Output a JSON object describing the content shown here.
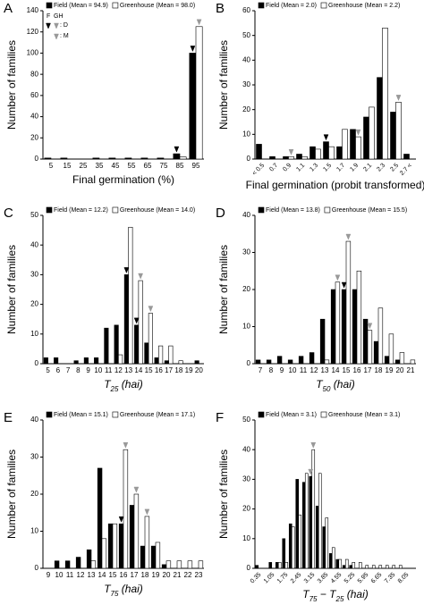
{
  "chart_data": [
    {
      "type": "bar",
      "panel": "A",
      "ylabel": "Number of families",
      "xlabel": [
        "Final germination (%)"
      ],
      "categories": [
        "5",
        "15",
        "25",
        "35",
        "45",
        "55",
        "65",
        "75",
        "85",
        "95"
      ],
      "series": [
        {
          "name": "Field (Mean = 94.9)",
          "color": "#000000",
          "values": [
            1,
            1,
            0,
            1,
            1,
            1,
            1,
            1,
            5,
            100
          ]
        },
        {
          "name": "Greenhouse (Mean = 98.0)",
          "color": "#ffffff",
          "values": [
            0,
            0,
            0,
            0,
            0,
            0,
            0,
            0,
            2,
            125
          ]
        }
      ],
      "ylim": [
        0,
        140
      ],
      "yticks": [
        0,
        20,
        40,
        60,
        80,
        100,
        120,
        140
      ],
      "arrow_legend": [
        "F",
        "GH",
        ": D",
        ": M"
      ],
      "arrows": [
        {
          "category": 8,
          "series": 0,
          "color": "#000000"
        },
        {
          "category": 9,
          "series": 0,
          "color": "#000000"
        },
        {
          "category": 9,
          "series": 1,
          "color": "#999999"
        }
      ]
    },
    {
      "type": "bar",
      "panel": "B",
      "ylabel": "Number of families",
      "xlabel": [
        "Final germination (probit transformed)"
      ],
      "rotate": true,
      "categories": [
        "< 0.5",
        "0.7",
        "0.9",
        "1.1",
        "1.3",
        "1.5",
        "1.7",
        "1.9",
        "2.1",
        "2.3",
        "2.5",
        "2.7 <"
      ],
      "series": [
        {
          "name": "Field (Mean = 2.0)",
          "color": "#000000",
          "values": [
            6,
            1,
            1,
            2,
            5,
            7,
            5,
            12,
            17,
            33,
            19,
            2
          ]
        },
        {
          "name": "Greenhouse (Mean = 2.2)",
          "color": "#ffffff",
          "values": [
            0,
            0,
            1,
            1,
            4,
            5,
            12,
            9,
            21,
            53,
            23,
            0
          ]
        }
      ],
      "ylim": [
        0,
        60
      ],
      "yticks": [
        0,
        10,
        20,
        30,
        40,
        50,
        60
      ],
      "arrows": [
        {
          "category": 2,
          "series": 1,
          "color": "#999999"
        },
        {
          "category": 5,
          "series": 0,
          "color": "#000000"
        },
        {
          "category": 7,
          "series": 1,
          "color": "#999999"
        },
        {
          "category": 10,
          "series": 1,
          "color": "#999999"
        }
      ]
    },
    {
      "type": "bar",
      "panel": "C",
      "ylabel": "Number of families",
      "xlabel": [
        "T",
        "25",
        " (hai)"
      ],
      "categories": [
        "5",
        "6",
        "7",
        "8",
        "9",
        "10",
        "11",
        "12",
        "13",
        "14",
        "15",
        "16",
        "17",
        "18",
        "19",
        "20"
      ],
      "series": [
        {
          "name": "Field (Mean = 12.2)",
          "color": "#000000",
          "values": [
            2,
            2,
            0,
            1,
            2,
            2,
            12,
            13,
            30,
            13,
            7,
            2,
            1,
            0,
            0,
            1
          ]
        },
        {
          "name": "Greenhouse (Mean = 14.0)",
          "color": "#ffffff",
          "values": [
            0,
            0,
            0,
            0,
            0,
            0,
            0,
            3,
            46,
            28,
            17,
            6,
            6,
            1,
            0,
            0
          ]
        }
      ],
      "ylim": [
        0,
        50
      ],
      "yticks": [
        0,
        10,
        20,
        30,
        40,
        50
      ],
      "arrows": [
        {
          "category": 8,
          "series": 0,
          "color": "#000000"
        },
        {
          "category": 9,
          "series": 1,
          "color": "#999999"
        },
        {
          "category": 9,
          "series": 0,
          "color": "#000000"
        },
        {
          "category": 10,
          "series": 1,
          "color": "#999999"
        }
      ]
    },
    {
      "type": "bar",
      "panel": "D",
      "ylabel": "Number of families",
      "xlabel": [
        "T",
        "50",
        " (hai)"
      ],
      "categories": [
        "7",
        "8",
        "9",
        "10",
        "11",
        "12",
        "13",
        "14",
        "15",
        "16",
        "17",
        "18",
        "19",
        "20",
        "21"
      ],
      "series": [
        {
          "name": "Field (Mean = 13.8)",
          "color": "#000000",
          "values": [
            1,
            1,
            2,
            1,
            2,
            3,
            12,
            20,
            20,
            20,
            12,
            6,
            2,
            1,
            0
          ]
        },
        {
          "name": "Greenhouse (Mean = 15.5)",
          "color": "#ffffff",
          "values": [
            0,
            0,
            0,
            0,
            0,
            0,
            1,
            22,
            33,
            25,
            9,
            15,
            8,
            3,
            1
          ]
        }
      ],
      "ylim": [
        0,
        40
      ],
      "yticks": [
        0,
        10,
        20,
        30,
        40
      ],
      "arrows": [
        {
          "category": 7,
          "series": 1,
          "color": "#999999"
        },
        {
          "category": 8,
          "series": 1,
          "color": "#999999"
        },
        {
          "category": 8,
          "series": 0,
          "color": "#000000"
        },
        {
          "category": 10,
          "series": 1,
          "color": "#999999"
        }
      ]
    },
    {
      "type": "bar",
      "panel": "E",
      "ylabel": "Number of families",
      "xlabel": [
        "T",
        "75",
        " (hai)"
      ],
      "categories": [
        "9",
        "10",
        "11",
        "12",
        "13",
        "14",
        "15",
        "16",
        "17",
        "18",
        "19",
        "20",
        "21",
        "22",
        "23"
      ],
      "series": [
        {
          "name": "Field (Mean = 15.1)",
          "color": "#000000",
          "values": [
            0,
            2,
            2,
            3,
            5,
            27,
            12,
            12,
            17,
            6,
            6,
            1,
            0,
            0,
            0
          ]
        },
        {
          "name": "Greenhouse (Mean = 17.1)",
          "color": "#ffffff",
          "values": [
            0,
            0,
            0,
            0,
            2,
            8,
            12,
            32,
            20,
            14,
            7,
            2,
            2,
            2,
            2
          ]
        }
      ],
      "ylim": [
        0,
        40
      ],
      "yticks": [
        0,
        10,
        20,
        30,
        40
      ],
      "arrows": [
        {
          "category": 7,
          "series": 1,
          "color": "#999999"
        },
        {
          "category": 7,
          "series": 0,
          "color": "#000000"
        },
        {
          "category": 8,
          "series": 1,
          "color": "#999999"
        },
        {
          "category": 9,
          "series": 1,
          "color": "#999999"
        }
      ]
    },
    {
      "type": "bar",
      "panel": "F",
      "ylabel": "Number of families",
      "xlabel": [
        "T",
        "75",
        " − ",
        "T",
        "25",
        " (hai)"
      ],
      "rotate": true,
      "categories": [
        "0.35",
        null,
        "1.05",
        null,
        "1.75",
        null,
        "2.45",
        null,
        "3.15",
        null,
        "3.85",
        null,
        "4.55",
        null,
        "5.25",
        null,
        "5.95",
        null,
        "6.65",
        null,
        "7.35",
        null,
        "8.05",
        null
      ],
      "series": [
        {
          "name": "Field (Mean = 3.1)",
          "color": "#000000",
          "values": [
            1,
            0,
            2,
            2,
            10,
            15,
            30,
            29,
            31,
            21,
            14,
            5,
            3,
            1,
            1,
            0,
            0,
            0,
            0,
            0,
            0,
            0,
            0,
            0
          ]
        },
        {
          "name": "Greenhouse (Mean = 3.1)",
          "color": "#ffffff",
          "values": [
            0,
            0,
            0,
            2,
            2,
            14,
            18,
            32,
            40,
            32,
            17,
            7,
            3,
            3,
            2,
            2,
            1,
            1,
            1,
            1,
            1,
            1,
            0,
            0
          ]
        }
      ],
      "ylim": [
        0,
        50
      ],
      "yticks": [
        0,
        10,
        20,
        30,
        40,
        50
      ],
      "arrows": [
        {
          "category": 8,
          "series": 0,
          "color": "#999999"
        },
        {
          "category": 8,
          "series": 1,
          "color": "#999999"
        }
      ]
    }
  ]
}
